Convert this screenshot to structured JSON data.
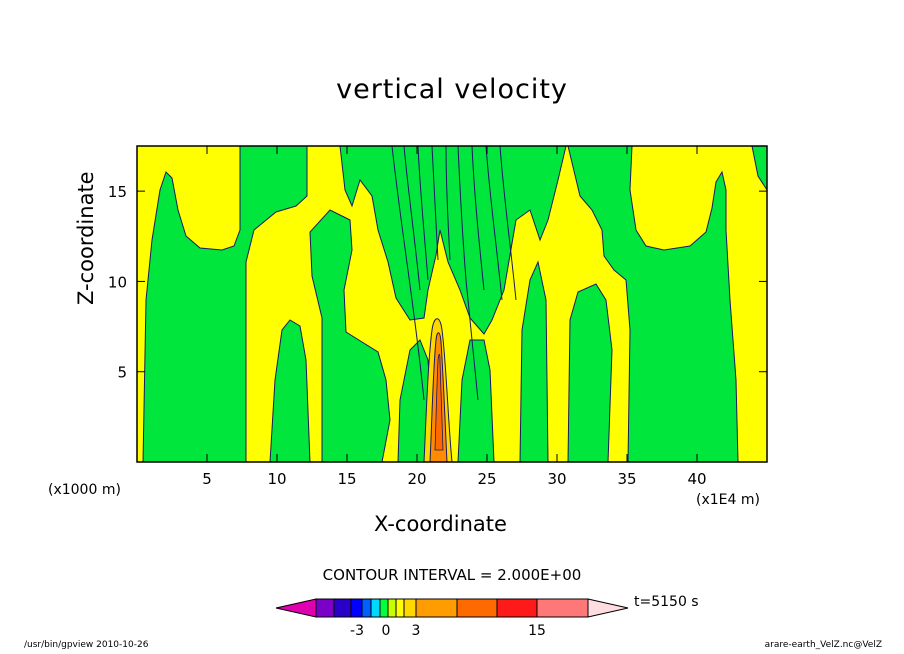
{
  "chart_data": {
    "type": "heatmap",
    "title": "vertical velocity",
    "xlabel": "X-coordinate",
    "ylabel": "Z-coordinate",
    "x_unit_left": "(x1000 m)",
    "x_unit_right": "(x1E4 m)",
    "xlim": [
      0,
      45
    ],
    "ylim": [
      0,
      17.5
    ],
    "x_ticks": [
      5,
      10,
      15,
      20,
      25,
      30,
      35,
      40
    ],
    "y_ticks": [
      5,
      10,
      15
    ],
    "contour_interval_text": "CONTOUR INTERVAL = 2.000E+00",
    "time_text": "t=5150 s",
    "colorbar": {
      "colors": [
        "#7b00c8",
        "#2a00c8",
        "#0000ff",
        "#0060ff",
        "#00d8ff",
        "#00ff40",
        "#c8ff00",
        "#ffff00",
        "#ffd800",
        "#ff9c00",
        "#ff6a00",
        "#ff1a1a",
        "#ff7878",
        "#ffbcc4"
      ],
      "low_extend_color": "#e000b0",
      "high_extend_color": "#ffdce0",
      "tick_labels": [
        "-3",
        "0",
        "3",
        "15"
      ]
    },
    "legend": "none",
    "grid": false
  },
  "footer": {
    "left": "/usr/bin/gpview  2010-10-26",
    "right": "arare-earth_VelZ.nc@VelZ"
  },
  "colors": {
    "positive": "#ffff00",
    "negative": "#00e63c",
    "strong_updraft": "#ff7a00",
    "contour_line": "#1a1a60"
  }
}
